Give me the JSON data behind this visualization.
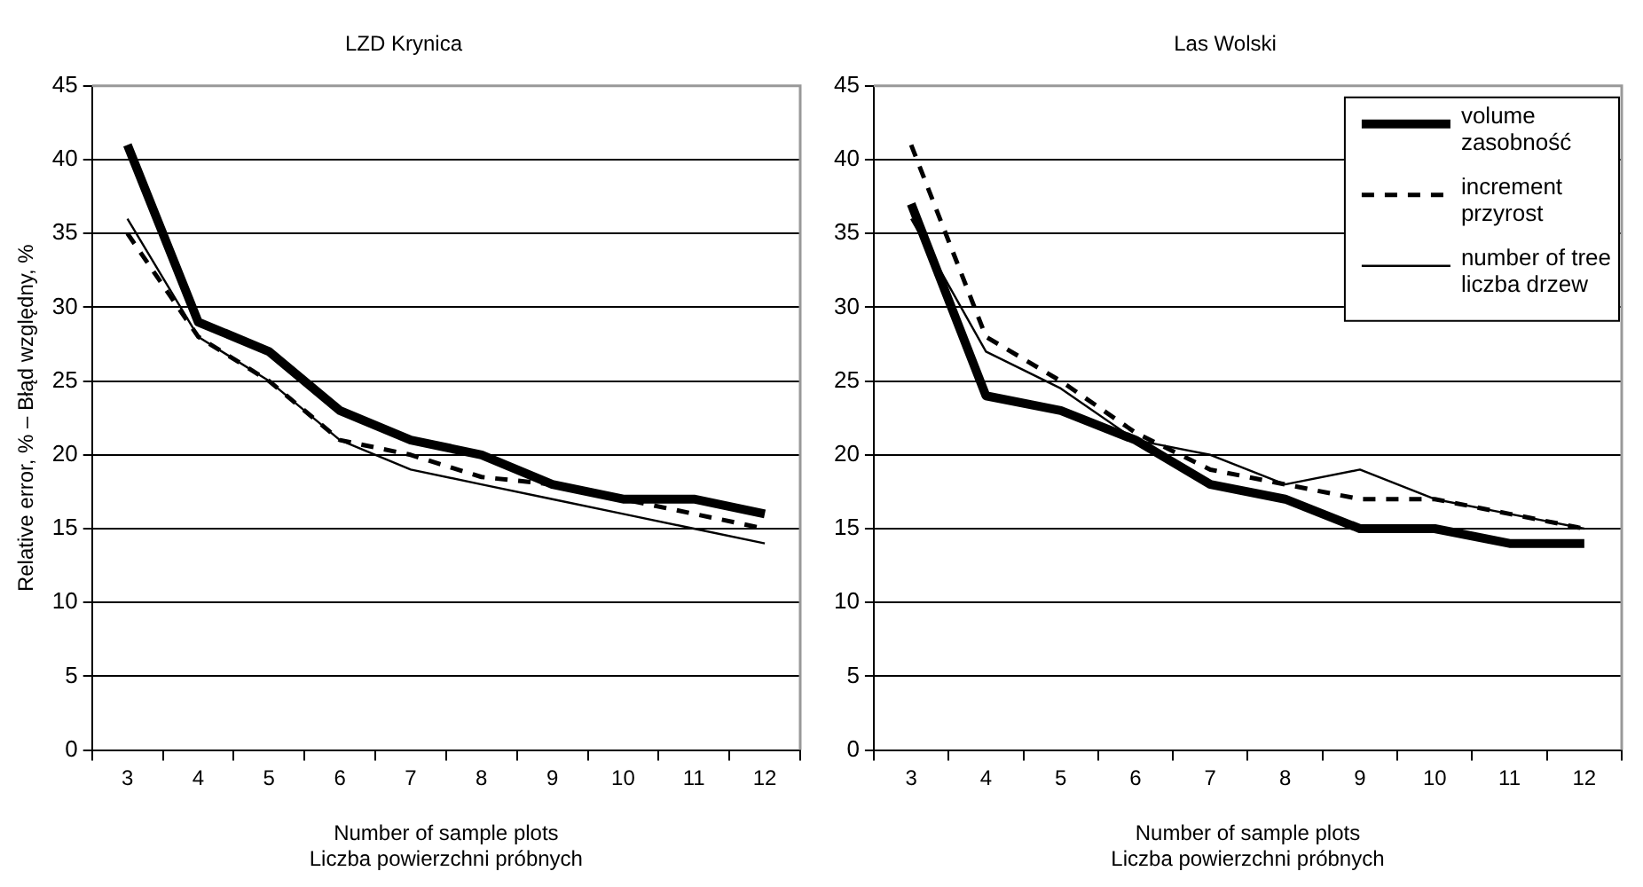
{
  "chart_data": [
    {
      "type": "line",
      "title": "LZD Krynica",
      "xlabel": "Number of sample plots\nLiczba powierzchni próbnych",
      "ylabel": "Relative error, % – Błąd względny, %",
      "categories": [
        "3",
        "4",
        "5",
        "6",
        "7",
        "8",
        "9",
        "10",
        "11",
        "12"
      ],
      "series": [
        {
          "color": "#000000",
          "line_style": "solid",
          "values": [
            41,
            29,
            27,
            23,
            21,
            20,
            18,
            17,
            17,
            16
          ]
        },
        {
          "color": "#000000",
          "line_style": "dashed",
          "values": [
            35,
            28,
            25,
            21,
            20,
            18.5,
            18,
            17,
            16,
            15
          ]
        },
        {
          "color": "#000000",
          "line_style": "solid",
          "values": [
            36,
            28,
            25,
            21,
            19,
            18,
            17,
            16,
            15,
            14
          ]
        }
      ],
      "ylim": [
        0,
        45
      ],
      "yticks": [
        0,
        5,
        10,
        15,
        20,
        25,
        30,
        35,
        40,
        45
      ],
      "grid": "y",
      "legend": false,
      "marker": "none"
    },
    {
      "type": "line",
      "title": "Las Wolski",
      "xlabel": "Number of sample plots\nLiczba powierzchni próbnych",
      "categories": [
        "3",
        "4",
        "5",
        "6",
        "7",
        "8",
        "9",
        "10",
        "11",
        "12"
      ],
      "series": [
        {
          "name": "volume\nzasobność",
          "color": "#000000",
          "line_style": "solid",
          "values": [
            37,
            24,
            23,
            21,
            18,
            17,
            15,
            15,
            14,
            14
          ]
        },
        {
          "name": "increment\nprzyrost",
          "color": "#000000",
          "line_style": "dashed",
          "values": [
            41,
            28,
            25,
            21.5,
            19,
            18,
            17,
            17,
            16,
            15
          ]
        },
        {
          "name": "number of tree\nliczba drzew",
          "color": "#000000",
          "line_style": "solid",
          "values": [
            36,
            27,
            24.5,
            21,
            20,
            18,
            19,
            17,
            16,
            15
          ]
        }
      ],
      "ylim": [
        0,
        45
      ],
      "yticks": [
        0,
        5,
        10,
        15,
        20,
        25,
        30,
        35,
        40,
        45
      ],
      "grid": "y",
      "legend": "top right",
      "marker": "none"
    }
  ]
}
